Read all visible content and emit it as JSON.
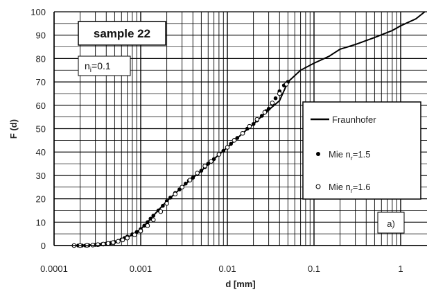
{
  "chart_data": {
    "type": "line",
    "title": "",
    "xlabel": "d [mm]",
    "ylabel": "F (d)",
    "xscale": "log",
    "xlim": [
      0.0001,
      1.9
    ],
    "ylim": [
      0,
      100
    ],
    "x_ticks": [
      "0.0001",
      "0.001",
      "0.01",
      "0.1",
      "1"
    ],
    "y_ticks": [
      "0",
      "10",
      "20",
      "30",
      "40",
      "50",
      "60",
      "70",
      "80",
      "90",
      "100"
    ],
    "grid": true,
    "legend_position": "right",
    "annotations": {
      "sample_label": "sample 22",
      "param_label_main": "n",
      "param_label_sub": "i",
      "param_label_value": "=0.1",
      "panel_label": "a)"
    },
    "series": [
      {
        "name": "Fraunhofer",
        "style": "line",
        "color": "#000000",
        "x": [
          0.00017,
          0.0002,
          0.00025,
          0.0003,
          0.0004,
          0.0005,
          0.0006,
          0.0008,
          0.001,
          0.0012,
          0.0015,
          0.002,
          0.003,
          0.004,
          0.005,
          0.007,
          0.01,
          0.015,
          0.02,
          0.03,
          0.04,
          0.05,
          0.07,
          0.1,
          0.15,
          0.2,
          0.3,
          0.5,
          0.8,
          1.0,
          1.5,
          1.9
        ],
        "y": [
          0,
          0,
          0.2,
          0.3,
          0.8,
          1.5,
          2.5,
          4.5,
          7,
          10,
          14,
          19,
          25,
          29,
          32,
          37,
          42,
          48,
          52,
          58,
          62,
          70,
          75,
          78,
          81,
          84,
          86,
          89,
          92,
          94,
          97,
          100
        ]
      },
      {
        "name": "Mie n",
        "name_sub": "r",
        "name_suffix": "=1.5",
        "style": "filled-marker",
        "color": "#000000",
        "x": [
          0.00017,
          0.00019,
          0.00021,
          0.00023,
          0.00025,
          0.00028,
          0.0003,
          0.00033,
          0.00036,
          0.0004,
          0.00045,
          0.0005,
          0.00055,
          0.0006,
          0.00065,
          0.0007,
          0.0008,
          0.0009,
          0.001,
          0.0011,
          0.0012,
          0.0013,
          0.0014,
          0.0016,
          0.0018,
          0.002,
          0.0022,
          0.0025,
          0.0028,
          0.003,
          0.0033,
          0.0036,
          0.004,
          0.0045,
          0.005,
          0.0055,
          0.006,
          0.0065,
          0.007,
          0.008,
          0.009,
          0.01,
          0.011,
          0.012,
          0.013,
          0.015,
          0.017,
          0.02,
          0.022,
          0.025,
          0.028,
          0.03,
          0.033,
          0.036,
          0.04,
          0.045,
          0.05
        ],
        "y": [
          0,
          0,
          0,
          0,
          0.1,
          0.2,
          0.3,
          0.4,
          0.6,
          0.8,
          1.1,
          1.5,
          2,
          2.6,
          3.2,
          3.8,
          4.8,
          5.8,
          7,
          8.5,
          10,
          11.5,
          12.8,
          15,
          17,
          19,
          20.5,
          22.5,
          24,
          25,
          26.5,
          27.8,
          29,
          30.5,
          32,
          33.5,
          35,
          36,
          37,
          39,
          40.5,
          42,
          43.5,
          45,
          46,
          48,
          50,
          52,
          53.5,
          55.5,
          57.5,
          58.5,
          60.5,
          63,
          66,
          68.5,
          70
        ]
      },
      {
        "name": "Mie n",
        "name_sub": "r",
        "name_suffix": "=1.6",
        "style": "open-marker",
        "color": "#000000",
        "x": [
          0.00017,
          0.0002,
          0.00024,
          0.00028,
          0.00032,
          0.00037,
          0.00042,
          0.00048,
          0.00055,
          0.00062,
          0.0007,
          0.00085,
          0.001,
          0.0012,
          0.0014,
          0.0017,
          0.002,
          0.0025,
          0.003,
          0.0037,
          0.0045,
          0.0055,
          0.0065,
          0.008,
          0.01,
          0.012,
          0.015,
          0.018,
          0.022,
          0.027,
          0.033,
          0.04,
          0.048
        ],
        "y": [
          0,
          0,
          0.1,
          0.2,
          0.4,
          0.6,
          0.9,
          1.3,
          1.8,
          2.4,
          3.2,
          4.6,
          6.2,
          8.5,
          11,
          14.5,
          18,
          22,
          25,
          28,
          31,
          34,
          36,
          39,
          42,
          45,
          48,
          51,
          54,
          57,
          61,
          65,
          69
        ]
      }
    ]
  }
}
